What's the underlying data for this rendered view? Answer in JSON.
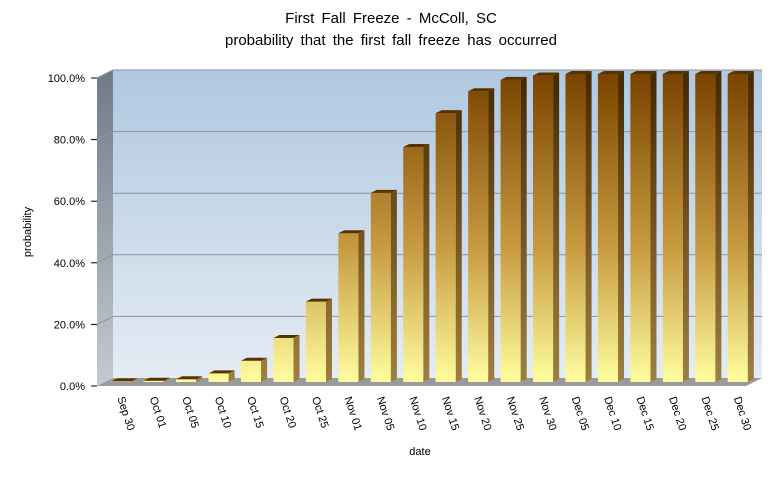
{
  "chart_data": {
    "type": "bar",
    "title": "First Fall Freeze - McColl,  SC",
    "subtitle": "probability  that  the  first  fall  freeze  has  occurred",
    "xlabel": "date",
    "ylabel": "probability",
    "ylim": [
      0,
      100
    ],
    "y_ticks": [
      "0.0%",
      "20.0%",
      "40.0%",
      "60.0%",
      "80.0%",
      "100.0%"
    ],
    "y_tick_values": [
      0,
      20,
      40,
      60,
      80,
      100
    ],
    "categories": [
      "Sep 30",
      "Oct 01",
      "Oct 05",
      "Oct 10",
      "Oct 15",
      "Oct 20",
      "Oct 25",
      "Nov 01",
      "Nov 05",
      "Nov 10",
      "Nov 15",
      "Nov 20",
      "Nov 25",
      "Nov 30",
      "Dec 05",
      "Dec 10",
      "Dec 15",
      "Dec 20",
      "Dec 25",
      "Dec 30"
    ],
    "values": [
      0.2,
      0.4,
      0.9,
      2.8,
      6.9,
      14.3,
      26.1,
      48.3,
      61.4,
      76.3,
      87.3,
      94.4,
      98.1,
      99.5,
      100,
      100,
      100,
      100,
      100,
      100
    ],
    "grid": true,
    "legend": "none",
    "colors": {
      "bar_top": "#7a4500",
      "bar_bottom": "#ffffa0",
      "plot_bg_top": "#b0c8e0",
      "plot_bg_bottom": "#e4ecf4",
      "floor": "#9a9a9a",
      "wall": "#7d8896"
    }
  }
}
